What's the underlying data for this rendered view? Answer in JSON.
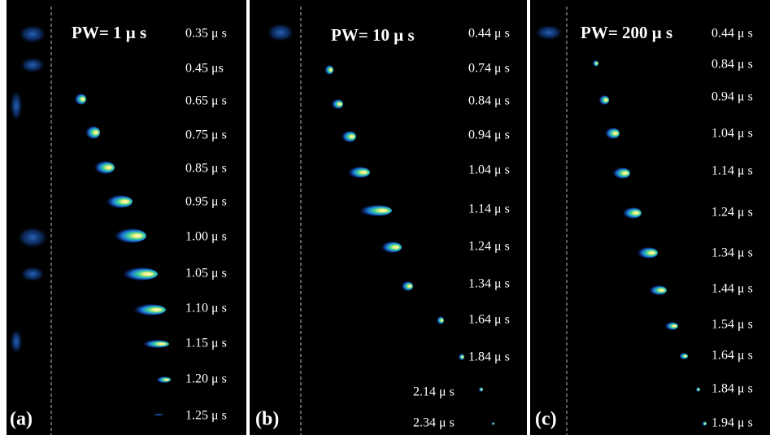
{
  "panels": [
    {
      "label": "(a)",
      "title": "PW= 1  μ s",
      "times": [
        "0.35 μ s",
        "0.45 μs",
        "0.65 μ s",
        "0.75 μ s",
        "0.85 μ s",
        "0.95 μ s",
        "1.00 μ s",
        "1.05 μ s",
        "1.10 μ s",
        "1.15 μ s",
        "1.20 μ s",
        "1.25 μ s"
      ]
    },
    {
      "label": "(b)",
      "title": "PW= 10  μ s",
      "times": [
        "0.44 μ s",
        "0.74 μ s",
        "0.84 μ s",
        "0.94 μ s",
        "1.04 μ s",
        "1.14 μ s",
        "1.24 μ s",
        "1.34 μ s",
        "1.64 μ s",
        "1.84 μ s",
        "2.14 μ s",
        "2.34 μ s"
      ]
    },
    {
      "label": "(c)",
      "title": "PW= 200  μ s",
      "times": [
        "0.44 μ s",
        "0.84 μ s",
        "0.94 μ s",
        "1.04 μ s",
        "1.14 μ s",
        "1.24 μ s",
        "1.34 μ s",
        "1.44 μ s",
        "1.54 μ s",
        "1.64 μ s",
        "1.84 μ s",
        "1.94 μ s"
      ]
    }
  ]
}
